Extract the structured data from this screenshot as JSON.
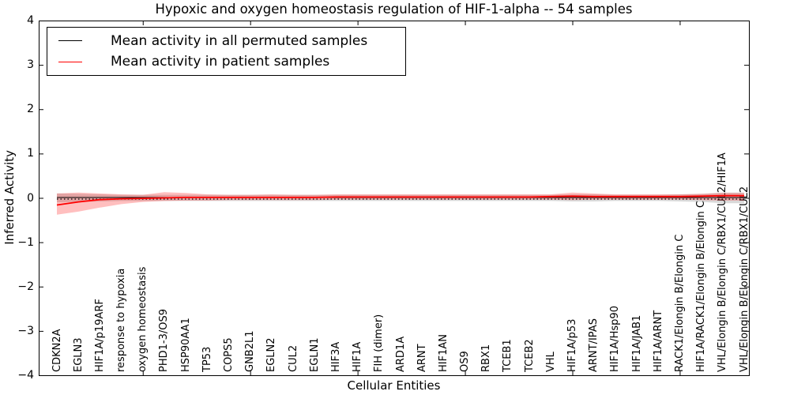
{
  "chart_data": {
    "type": "line",
    "title": "Hypoxic and oxygen homeostasis regulation of HIF-1-alpha -- 54 samples",
    "xlabel": "Cellular Entities",
    "ylabel": "Inferred Activity",
    "ylim": [
      -4,
      4
    ],
    "yticks": [
      4,
      3,
      2,
      1,
      0,
      -1,
      -2,
      -3,
      -4
    ],
    "xtick_indices": [
      4,
      9,
      14,
      19,
      24,
      29
    ],
    "grid": false,
    "legend_position": "upper left",
    "background": "#ffffff",
    "zero_line": {
      "value": 0,
      "style": "dotted",
      "color": "#000000"
    },
    "categories": [
      "CDKN2A",
      "EGLN3",
      "HIF1A/p19ARF",
      "response to hypoxia",
      "oxygen homeostasis",
      "PHD1-3/OS9",
      "HSP90AA1",
      "TP53",
      "COPS5",
      "GNB2L1",
      "EGLN2",
      "CUL2",
      "EGLN1",
      "HIF3A",
      "HIF1A",
      "FIH (dimer)",
      "ARD1A",
      "ARNT",
      "HIF1AN",
      "OS9",
      "RBX1",
      "TCEB1",
      "TCEB2",
      "VHL",
      "HIF1A/p53",
      "ARNT/IPAS",
      "HIF1A/Hsp90",
      "HIF1A/JAB1",
      "HIF1A/ARNT",
      "RACK1/Elongin B/Elongin C",
      "HIF1A/RACK1/Elongin B/Elongin C",
      "VHL/Elongin B/Elongin C/RBX1/CUL2/HIF1A",
      "VHL/Elongin B/Elongin C/RBX1/CUL2"
    ],
    "series": [
      {
        "name": "Mean activity in all permuted samples",
        "color": "#000000",
        "style": "solid",
        "values": [
          0,
          0,
          0,
          0,
          0,
          0,
          0,
          0,
          0,
          0,
          0,
          0,
          0,
          0,
          0,
          0,
          0,
          0,
          0,
          0,
          0,
          0,
          0,
          0,
          0,
          0,
          0,
          0,
          0,
          0,
          0,
          0,
          0
        ],
        "band_upper": [
          0.1,
          0.09,
          0.08,
          0.07,
          0.07,
          0.07,
          0.07,
          0.07,
          0.07,
          0.07,
          0.07,
          0.07,
          0.07,
          0.07,
          0.07,
          0.07,
          0.07,
          0.07,
          0.07,
          0.07,
          0.07,
          0.07,
          0.07,
          0.07,
          0.08,
          0.08,
          0.07,
          0.07,
          0.07,
          0.08,
          0.09,
          0.12,
          0.12
        ],
        "band_lower": [
          -0.1,
          -0.09,
          -0.08,
          -0.07,
          -0.07,
          -0.07,
          -0.07,
          -0.07,
          -0.07,
          -0.07,
          -0.07,
          -0.07,
          -0.07,
          -0.07,
          -0.07,
          -0.07,
          -0.07,
          -0.07,
          -0.07,
          -0.07,
          -0.07,
          -0.07,
          -0.07,
          -0.07,
          -0.08,
          -0.08,
          -0.07,
          -0.07,
          -0.07,
          -0.08,
          -0.09,
          -0.12,
          -0.12
        ],
        "band_color": "rgba(128,128,128,0.30)"
      },
      {
        "name": "Mean activity in patient samples",
        "color": "#ff0000",
        "style": "solid",
        "values": [
          -0.16,
          -0.09,
          -0.04,
          -0.02,
          -0.01,
          0.0,
          0.01,
          0.01,
          0.01,
          0.01,
          0.01,
          0.01,
          0.01,
          0.02,
          0.02,
          0.02,
          0.02,
          0.02,
          0.02,
          0.02,
          0.02,
          0.02,
          0.02,
          0.03,
          0.04,
          0.03,
          0.03,
          0.03,
          0.03,
          0.03,
          0.04,
          0.05,
          0.05
        ],
        "band_upper": [
          0.1,
          0.12,
          0.1,
          0.08,
          0.07,
          0.13,
          0.11,
          0.08,
          0.07,
          0.07,
          0.08,
          0.07,
          0.07,
          0.08,
          0.08,
          0.08,
          0.08,
          0.08,
          0.08,
          0.08,
          0.08,
          0.08,
          0.08,
          0.08,
          0.12,
          0.1,
          0.08,
          0.08,
          0.08,
          0.08,
          0.09,
          0.11,
          0.11
        ],
        "band_lower": [
          -0.38,
          -0.31,
          -0.22,
          -0.14,
          -0.09,
          -0.07,
          -0.06,
          -0.06,
          -0.05,
          -0.05,
          -0.05,
          -0.05,
          -0.05,
          -0.04,
          -0.04,
          -0.04,
          -0.04,
          -0.04,
          -0.04,
          -0.04,
          -0.04,
          -0.04,
          -0.04,
          -0.04,
          -0.05,
          -0.04,
          -0.04,
          -0.04,
          -0.04,
          -0.04,
          -0.05,
          -0.06,
          -0.06
        ],
        "band_color": "rgba(255,0,0,0.25)"
      }
    ]
  }
}
